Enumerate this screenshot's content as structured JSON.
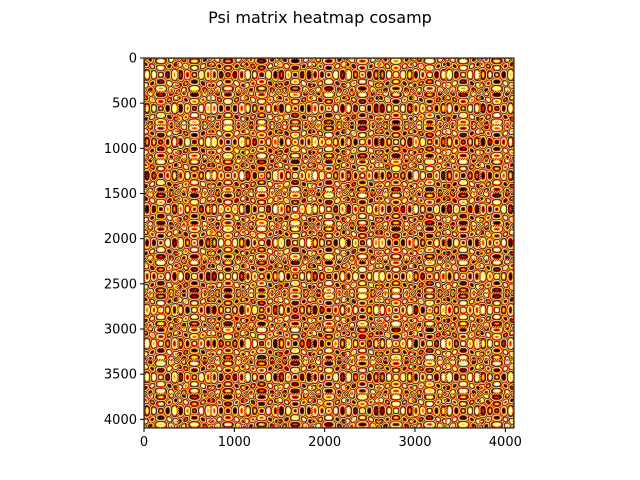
{
  "chart_data": {
    "type": "heatmap",
    "title": "Psi matrix heatmap cosamp",
    "xlabel": "",
    "ylabel": "",
    "xlim": [
      0,
      4096
    ],
    "ylim": [
      4096,
      0
    ],
    "colormap": "hot",
    "grid": false,
    "x_ticks": [
      {
        "value": 0,
        "label": "0"
      },
      {
        "value": 1000,
        "label": "1000"
      },
      {
        "value": 2000,
        "label": "2000"
      },
      {
        "value": 3000,
        "label": "3000"
      },
      {
        "value": 4000,
        "label": "4000"
      }
    ],
    "y_ticks": [
      {
        "value": 0,
        "label": "0"
      },
      {
        "value": 500,
        "label": "500"
      },
      {
        "value": 1000,
        "label": "1000"
      },
      {
        "value": 1500,
        "label": "1500"
      },
      {
        "value": 2000,
        "label": "2000"
      },
      {
        "value": 2500,
        "label": "2500"
      },
      {
        "value": 3000,
        "label": "3000"
      },
      {
        "value": 3500,
        "label": "3500"
      },
      {
        "value": 4000,
        "label": "4000"
      }
    ],
    "block_period": 372
  }
}
